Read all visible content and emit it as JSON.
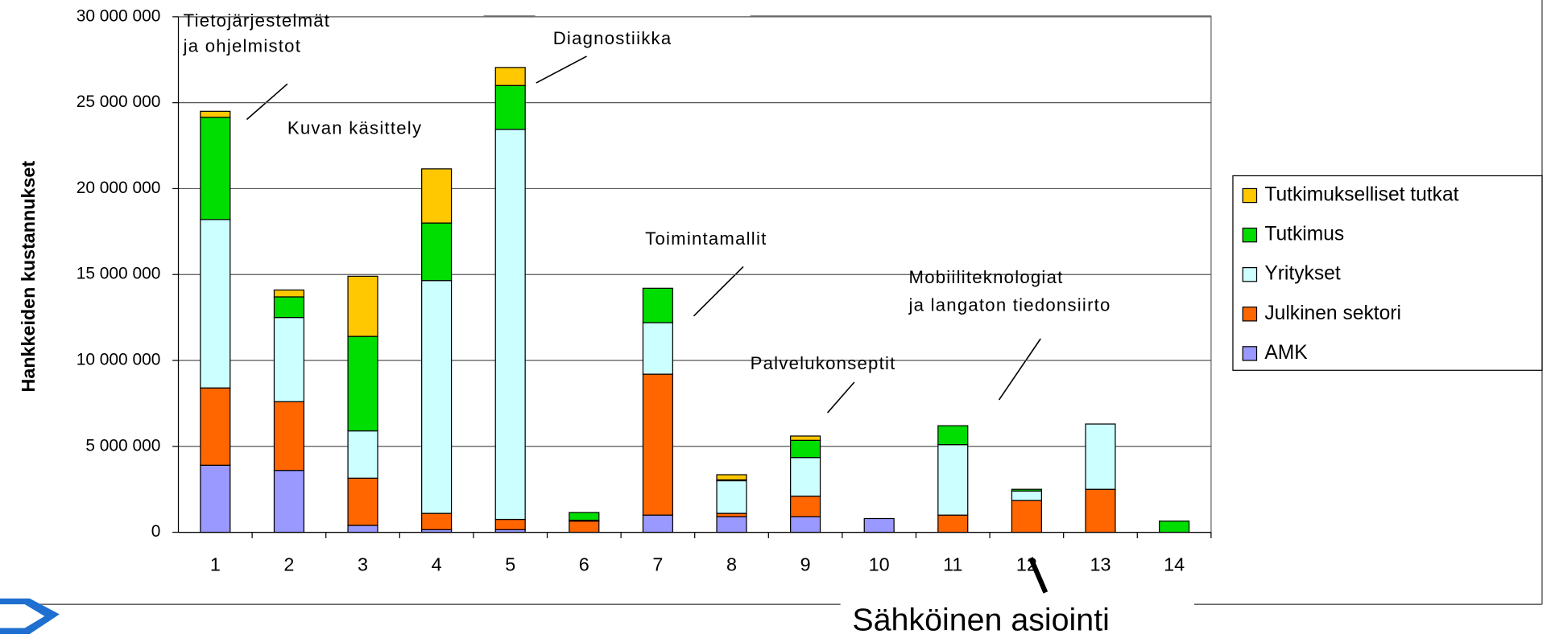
{
  "chart_data": {
    "type": "stacked_bar",
    "y_label": "Hankkeiden kustannukset",
    "categories": [
      "1",
      "2",
      "3",
      "4",
      "5",
      "6",
      "7",
      "8",
      "9",
      "10",
      "11",
      "12",
      "13",
      "14"
    ],
    "series": [
      {
        "name": "AMK",
        "color": "#9999ff",
        "values": [
          3.9,
          3.6,
          0.4,
          0.15,
          0.15,
          0,
          1.0,
          0.9,
          0.9,
          0.8,
          0,
          0,
          0,
          0
        ]
      },
      {
        "name": "Julkinen sektori",
        "color": "#ff6600",
        "values": [
          4.5,
          4.0,
          2.75,
          0.95,
          0.6,
          0.65,
          8.2,
          0.2,
          1.2,
          0,
          1.0,
          1.85,
          2.5,
          0
        ]
      },
      {
        "name": "Yritykset",
        "color": "#ccffff",
        "values": [
          9.8,
          4.9,
          2.75,
          13.55,
          22.7,
          0.05,
          3.0,
          1.9,
          2.25,
          0,
          4.1,
          0.55,
          3.8,
          0
        ]
      },
      {
        "name": "Tutkimus",
        "color": "#00dd00",
        "values": [
          5.95,
          1.2,
          5.5,
          3.35,
          2.55,
          0.45,
          2.0,
          0.05,
          1.0,
          0,
          1.1,
          0.1,
          0,
          0.65
        ]
      },
      {
        "name": "Tutkimukselliset tutkat",
        "color": "#ffc800",
        "values": [
          0.35,
          0.4,
          3.5,
          3.15,
          1.05,
          0,
          0,
          0.3,
          0.25,
          0,
          0,
          0,
          0,
          0
        ]
      }
    ],
    "ylim": [
      0,
      30
    ],
    "yticks": [
      {
        "value": 0,
        "label": "0"
      },
      {
        "value": 5,
        "label": "5 000 000"
      },
      {
        "value": 10,
        "label": "10 000 000"
      },
      {
        "value": 15,
        "label": "15 000 000"
      },
      {
        "value": 20,
        "label": "20 000 000"
      },
      {
        "value": 25,
        "label": "25 000 000"
      },
      {
        "value": 30,
        "label": "30 000 000"
      }
    ],
    "grid": true,
    "legend": "right",
    "annotations": [
      "Tietojärjestelmät",
      "ja ohjelmistot",
      "Diagnostiikka",
      "Kuvan käsittely",
      "Toimintamallit",
      "Mobiiliteknologiat",
      "ja langaton tiedonsiirto",
      "Palvelukonseptit",
      "Sähköinen asiointi"
    ]
  }
}
